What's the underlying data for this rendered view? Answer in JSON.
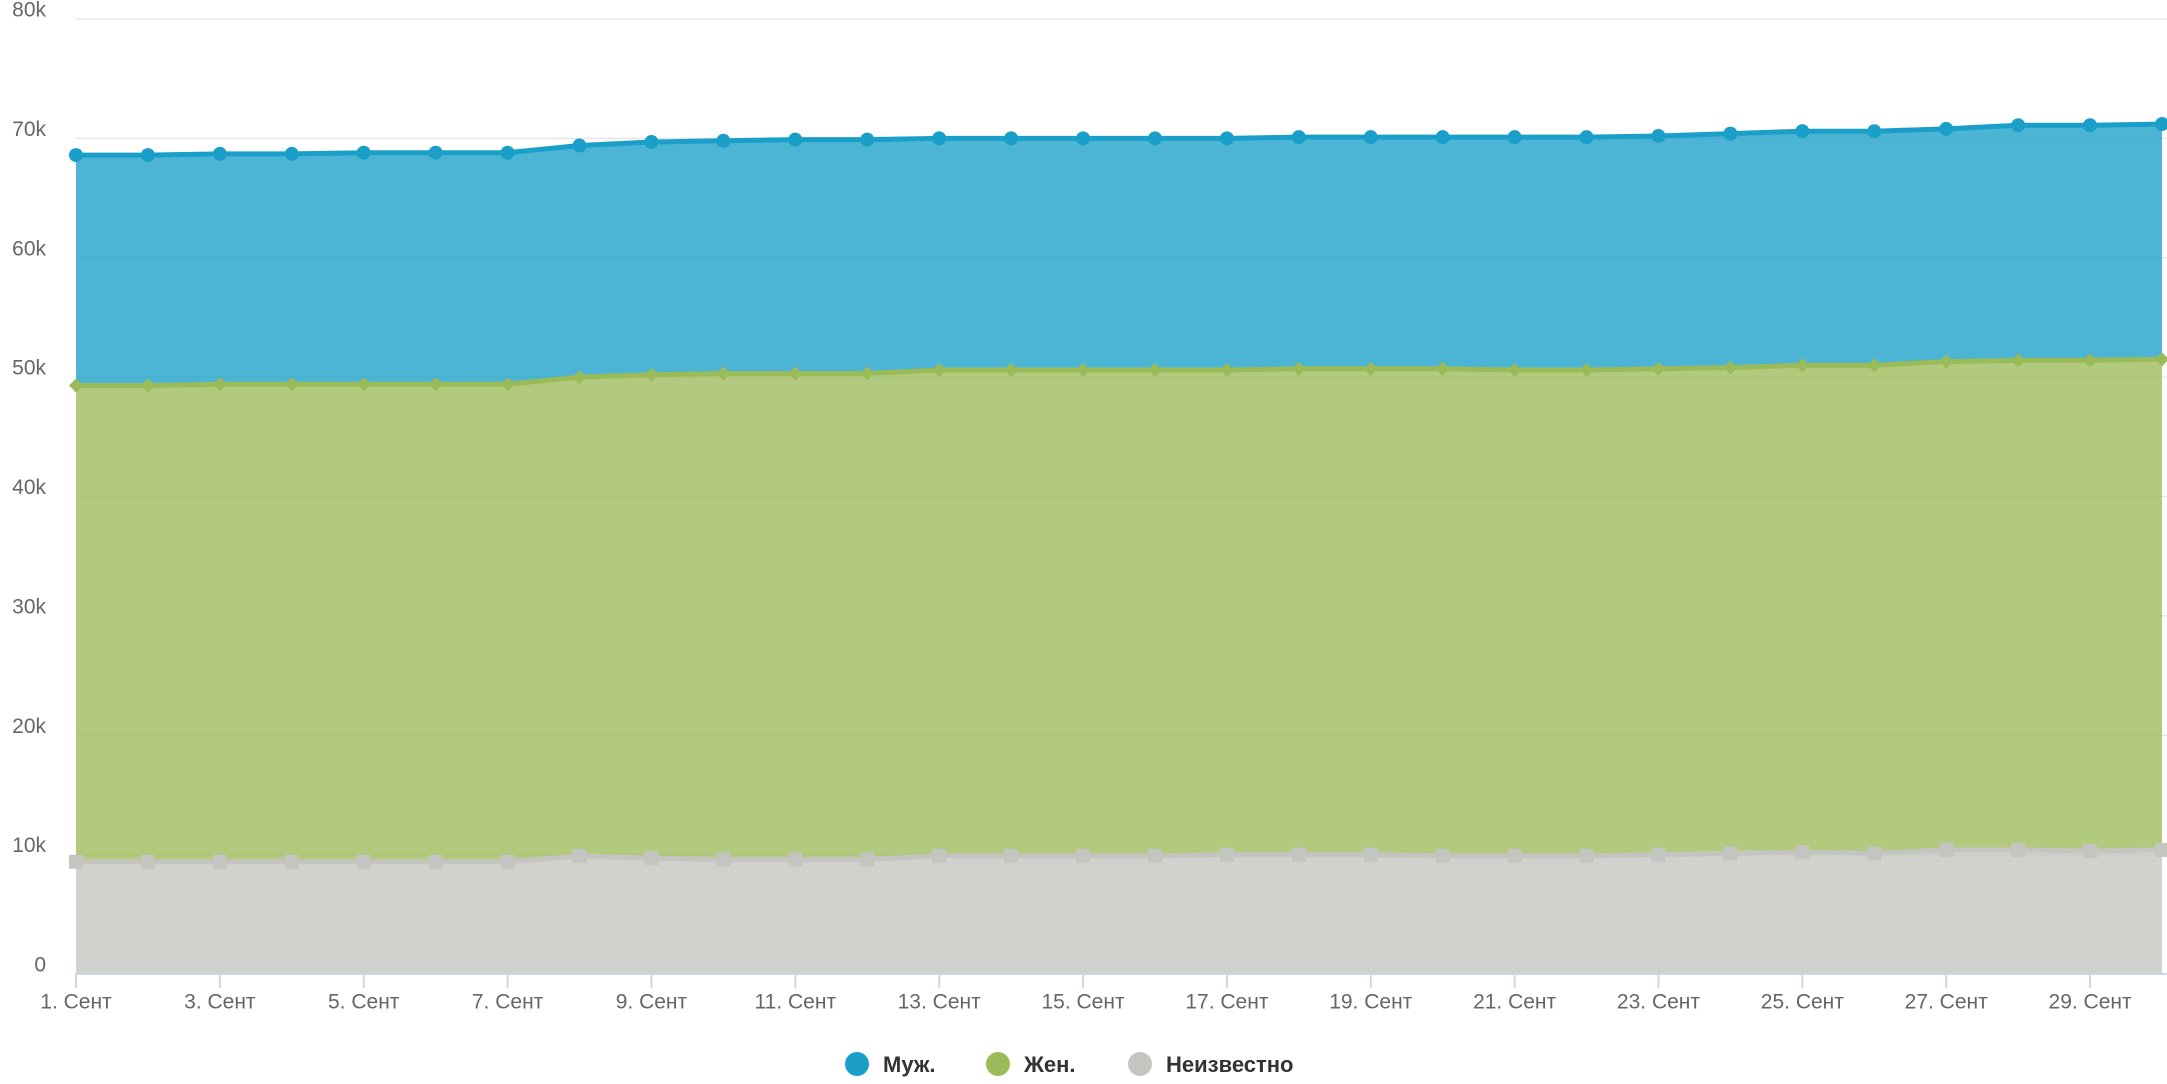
{
  "chart_data": {
    "type": "stacked_area",
    "categories": [
      "1. Сент",
      null,
      "3. Сент",
      null,
      "5. Сент",
      null,
      "7. Сент",
      null,
      "9. Сент",
      null,
      "11. Сент",
      null,
      "13. Сент",
      null,
      "15. Сент",
      null,
      "17. Сент",
      null,
      "19. Сент",
      null,
      "21. Сент",
      null,
      "23. Сент",
      null,
      "25. Сент",
      null,
      "27. Сент",
      null,
      "29. Сент",
      null
    ],
    "series": [
      {
        "name": "Муж.",
        "color": "#1a9fc9",
        "marker": "circle",
        "values": [
          19300,
          19300,
          19300,
          19300,
          19400,
          19400,
          19400,
          19400,
          19500,
          19500,
          19600,
          19600,
          19400,
          19400,
          19400,
          19400,
          19400,
          19400,
          19400,
          19400,
          19500,
          19500,
          19500,
          19600,
          19600,
          19600,
          19500,
          19700,
          19700,
          19700
        ]
      },
      {
        "name": "Жен.",
        "color": "#9bbb59",
        "marker": "diamond",
        "values": [
          39900,
          39900,
          40000,
          40000,
          40000,
          40000,
          40000,
          40100,
          40500,
          40700,
          40700,
          40700,
          40700,
          40700,
          40700,
          40700,
          40600,
          40700,
          40700,
          40800,
          40700,
          40700,
          40700,
          40700,
          40800,
          40900,
          40900,
          41000,
          41100,
          41100
        ]
      },
      {
        "name": "Неизвестно",
        "color": "#c4c4c0",
        "marker": "square",
        "values": [
          9400,
          9400,
          9400,
          9400,
          9400,
          9400,
          9400,
          9900,
          9700,
          9600,
          9600,
          9600,
          9900,
          9900,
          9900,
          9900,
          10000,
          10000,
          10000,
          9900,
          9900,
          9900,
          10000,
          10100,
          10200,
          10100,
          10400,
          10400,
          10300,
          10400
        ]
      }
    ],
    "ylim": [
      0,
      80000
    ],
    "yticks": [
      0,
      {
        "value": 10000,
        "label": "10k"
      },
      {
        "value": 20000,
        "label": "20k"
      },
      {
        "value": 30000,
        "label": "30k"
      },
      {
        "value": 40000,
        "label": "40k"
      },
      {
        "value": 50000,
        "label": "50k"
      },
      {
        "value": 60000,
        "label": "60k"
      },
      {
        "value": 70000,
        "label": "70k"
      },
      {
        "value": 80000,
        "label": "80k"
      }
    ],
    "grid": true,
    "legend": "bottom"
  }
}
